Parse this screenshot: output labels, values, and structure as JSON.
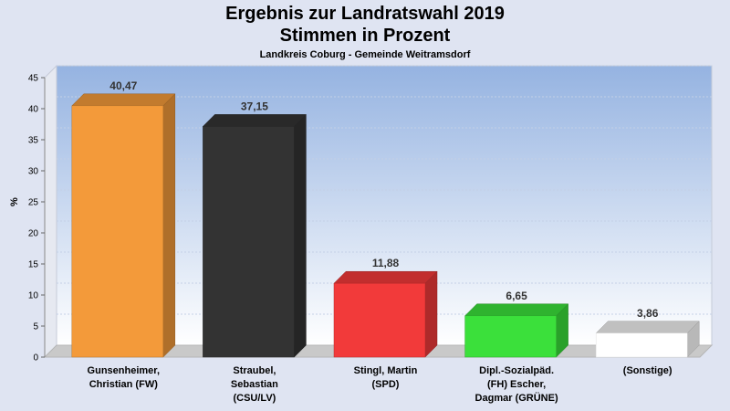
{
  "chart_data": {
    "type": "bar",
    "title": "Ergebnis zur Landratswahl 2019",
    "title_line2": "Stimmen in Prozent",
    "subtitle": "Landkreis Coburg - Gemeinde Weitramsdorf",
    "ylabel": "%",
    "ylim": [
      0,
      45
    ],
    "yticks": [
      0,
      5,
      10,
      15,
      20,
      25,
      30,
      35,
      40,
      45
    ],
    "grid": true,
    "categories": [
      [
        "Gunsenheimer,",
        "Christian (FW)"
      ],
      [
        "Straubel,",
        "Sebastian",
        "(CSU/LV)"
      ],
      [
        "Stingl, Martin",
        "(SPD)"
      ],
      [
        "Dipl.-Sozialpäd.",
        "(FH) Escher,",
        "Dagmar (GRÜNE)"
      ],
      [
        "(Sonstige)"
      ]
    ],
    "values": [
      40.47,
      37.15,
      11.88,
      6.65,
      3.86
    ],
    "value_labels": [
      "40,47",
      "37,15",
      "11,88",
      "6,65",
      "3,86"
    ],
    "colors": [
      "#f39a3a",
      "#333333",
      "#f23a3a",
      "#3be03b",
      "#ffffff"
    ]
  }
}
